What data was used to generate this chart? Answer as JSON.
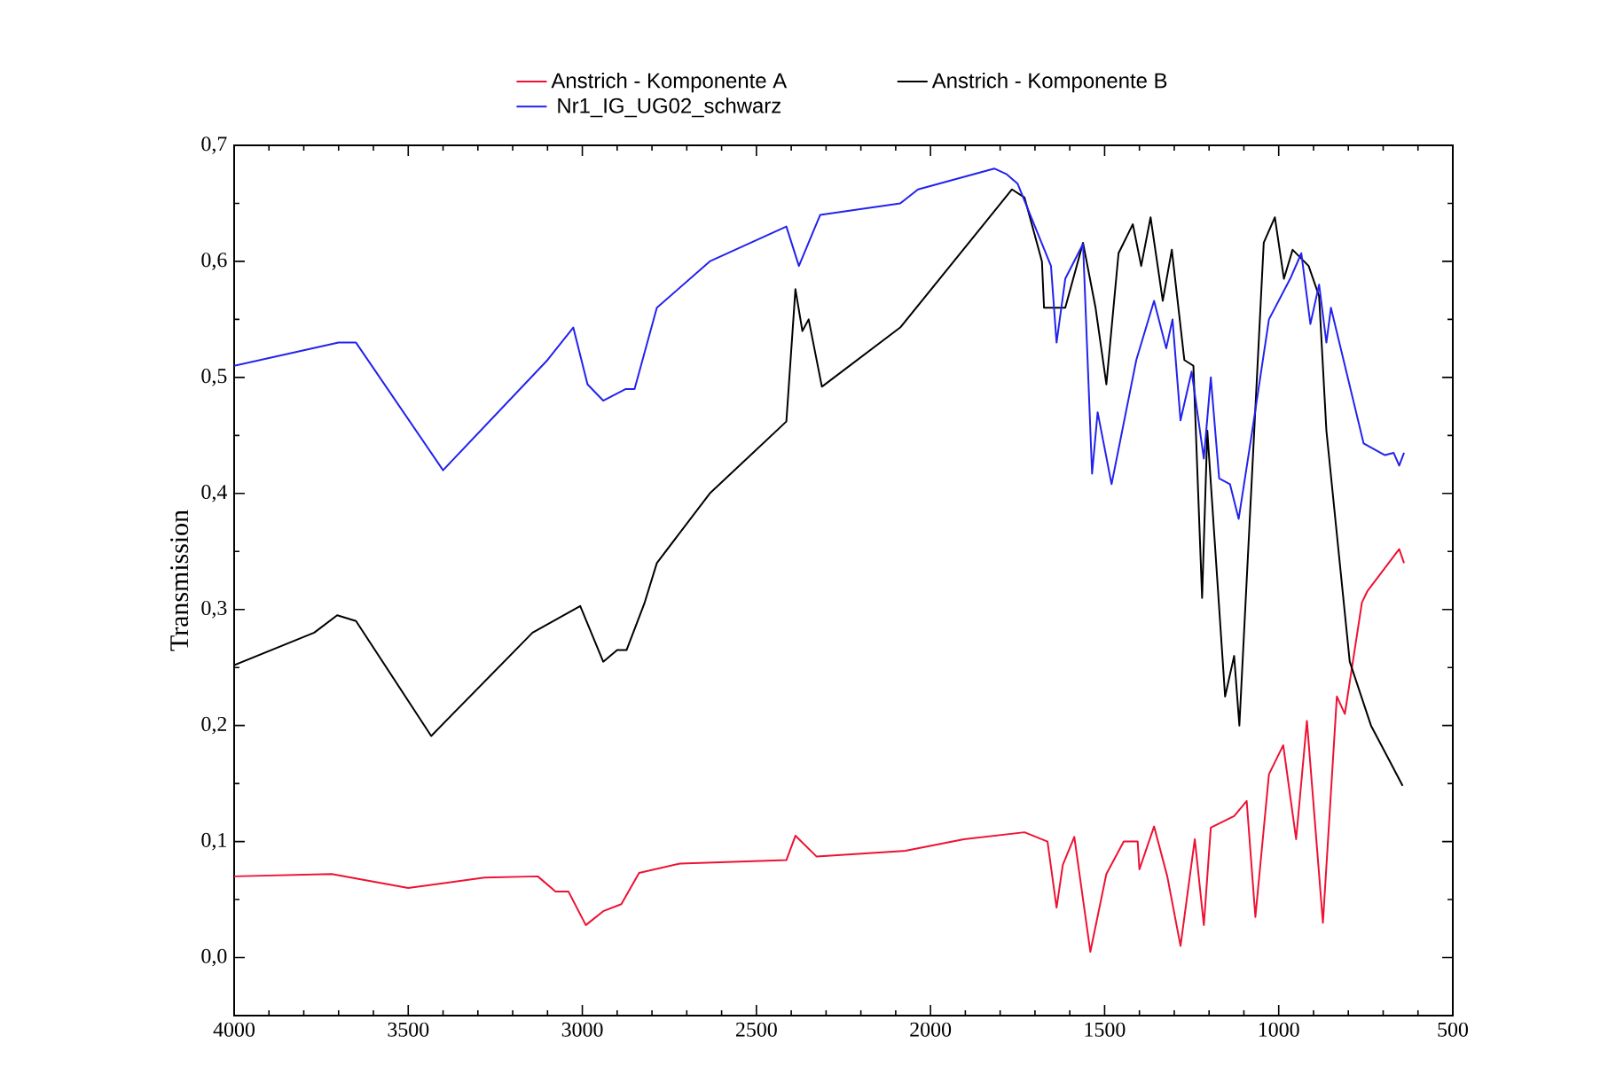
{
  "chart_data": {
    "type": "line",
    "ylabel": "Transmission",
    "legend": "top",
    "grid": false,
    "line_style": "solid",
    "marker": "none",
    "xlim": [
      4000,
      500
    ],
    "xticks": [
      4000,
      3500,
      3000,
      2500,
      2000,
      1500,
      1000,
      500
    ],
    "ylim": [
      -0.05,
      0.7
    ],
    "yticks": [
      {
        "value": 0,
        "label": "0,0"
      },
      {
        "value": 0.1,
        "label": "0,1"
      },
      {
        "value": 0.2,
        "label": "0,2"
      },
      {
        "value": 0.3,
        "label": "0,3"
      },
      {
        "value": 0.4,
        "label": "0,4"
      },
      {
        "value": 0.5,
        "label": "0,5"
      },
      {
        "value": 0.6,
        "label": "0,6"
      },
      {
        "value": 0.7,
        "label": "0,7"
      }
    ],
    "series": [
      {
        "name": "Anstrich - Komponente A",
        "color": "#ee1133",
        "x": [
          4000,
          3720,
          3500,
          3281,
          3128,
          3077,
          3040,
          2990,
          2940,
          2888,
          2837,
          2720,
          2414,
          2388,
          2327,
          2072,
          1904,
          1730,
          1664,
          1638,
          1620,
          1587,
          1541,
          1495,
          1445,
          1405,
          1400,
          1358,
          1320,
          1282,
          1241,
          1215,
          1195,
          1128,
          1092,
          1067,
          1028,
          987,
          950,
          919,
          873,
          833,
          810,
          761,
          745,
          654,
          640
        ],
        "values": [
          0.07,
          0.072,
          0.06,
          0.069,
          0.07,
          0.057,
          0.057,
          0.028,
          0.04,
          0.046,
          0.073,
          0.081,
          0.084,
          0.105,
          0.087,
          0.092,
          0.102,
          0.108,
          0.1,
          0.043,
          0.08,
          0.104,
          0.005,
          0.072,
          0.1,
          0.1,
          0.076,
          0.113,
          0.07,
          0.01,
          0.102,
          0.028,
          0.112,
          0.122,
          0.135,
          0.035,
          0.158,
          0.183,
          0.102,
          0.204,
          0.03,
          0.225,
          0.21,
          0.306,
          0.316,
          0.352,
          0.34
        ]
      },
      {
        "name": "Anstrich -   Komponente B",
        "color": "#000000",
        "x": [
          4000,
          3770,
          3704,
          3650,
          3434,
          3143,
          3006,
          2940,
          2900,
          2873,
          2822,
          2786,
          2634,
          2414,
          2388,
          2368,
          2350,
          2312,
          2087,
          1766,
          1730,
          1680,
          1674,
          1613,
          1562,
          1526,
          1495,
          1460,
          1419,
          1395,
          1368,
          1333,
          1307,
          1271,
          1245,
          1220,
          1205,
          1154,
          1128,
          1113,
          1043,
          1011,
          985,
          960,
          914,
          884,
          863,
          796,
          735,
          679,
          644
        ],
        "values": [
          0.252,
          0.28,
          0.295,
          0.29,
          0.191,
          0.28,
          0.303,
          0.255,
          0.265,
          0.265,
          0.305,
          0.34,
          0.4,
          0.462,
          0.576,
          0.54,
          0.55,
          0.492,
          0.543,
          0.662,
          0.655,
          0.6,
          0.56,
          0.56,
          0.616,
          0.56,
          0.494,
          0.607,
          0.632,
          0.596,
          0.638,
          0.566,
          0.61,
          0.515,
          0.51,
          0.31,
          0.454,
          0.225,
          0.26,
          0.2,
          0.616,
          0.638,
          0.585,
          0.61,
          0.596,
          0.57,
          0.454,
          0.255,
          0.2,
          0.168,
          0.148
        ]
      },
      {
        "name": "Nr1_IG_UG02_schwarz",
        "color": "#2222ee",
        "x": [
          4000,
          3700,
          3650,
          3400,
          3100,
          3026,
          2985,
          2940,
          2875,
          2850,
          2786,
          2634,
          2414,
          2378,
          2317,
          2087,
          2036,
          1817,
          1781,
          1750,
          1700,
          1654,
          1638,
          1613,
          1562,
          1536,
          1520,
          1480,
          1409,
          1358,
          1323,
          1305,
          1282,
          1250,
          1215,
          1195,
          1171,
          1140,
          1115,
          1079,
          1028,
          967,
          935,
          909,
          884,
          863,
          850,
          756,
          695,
          670,
          654,
          640
        ],
        "values": [
          0.51,
          0.53,
          0.53,
          0.42,
          0.515,
          0.543,
          0.494,
          0.48,
          0.49,
          0.49,
          0.56,
          0.6,
          0.63,
          0.596,
          0.64,
          0.65,
          0.662,
          0.68,
          0.675,
          0.667,
          0.63,
          0.596,
          0.53,
          0.585,
          0.615,
          0.417,
          0.47,
          0.408,
          0.515,
          0.566,
          0.525,
          0.55,
          0.463,
          0.505,
          0.43,
          0.5,
          0.413,
          0.408,
          0.378,
          0.448,
          0.55,
          0.585,
          0.607,
          0.546,
          0.58,
          0.53,
          0.56,
          0.443,
          0.433,
          0.435,
          0.424,
          0.435
        ]
      }
    ]
  }
}
